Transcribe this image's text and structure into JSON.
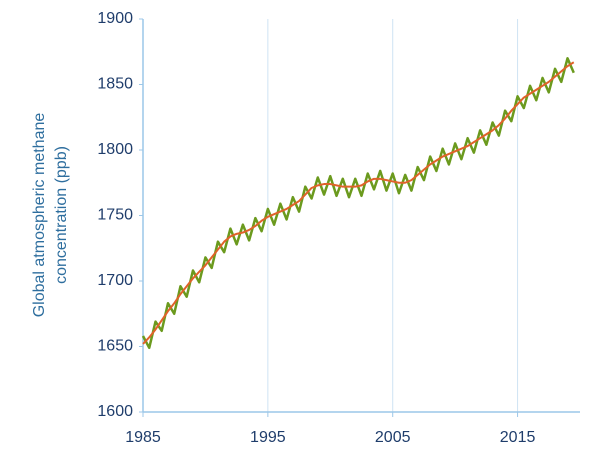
{
  "chart_data": {
    "type": "line",
    "ylabel": [
      "Global atmospheric methane",
      "concentration (ppb)"
    ],
    "x": [
      1985,
      1985.5,
      1986,
      1986.5,
      1987,
      1987.5,
      1988,
      1988.5,
      1989,
      1989.5,
      1990,
      1990.5,
      1991,
      1991.5,
      1992,
      1992.5,
      1993,
      1993.5,
      1994,
      1994.5,
      1995,
      1995.5,
      1996,
      1996.5,
      1997,
      1997.5,
      1998,
      1998.5,
      1999,
      1999.5,
      2000,
      2000.5,
      2001,
      2001.5,
      2002,
      2002.5,
      2003,
      2003.5,
      2004,
      2004.5,
      2005,
      2005.5,
      2006,
      2006.5,
      2007,
      2007.5,
      2008,
      2008.5,
      2009,
      2009.5,
      2010,
      2010.5,
      2011,
      2011.5,
      2012,
      2012.5,
      2013,
      2013.5,
      2014,
      2014.5,
      2015,
      2015.5,
      2016,
      2016.5,
      2017,
      2017.5,
      2018,
      2018.5,
      2019,
      2019.5
    ],
    "series": [
      {
        "color": "#6b9a1e",
        "width": 2.5,
        "values": [
          1658,
          1649,
          1669,
          1662,
          1683,
          1675,
          1696,
          1688,
          1708,
          1699,
          1718,
          1710,
          1730,
          1722,
          1740,
          1728,
          1743,
          1731,
          1748,
          1738,
          1755,
          1743,
          1759,
          1747,
          1764,
          1753,
          1772,
          1763,
          1779,
          1766,
          1780,
          1765,
          1778,
          1764,
          1778,
          1765,
          1782,
          1770,
          1784,
          1769,
          1782,
          1767,
          1781,
          1769,
          1787,
          1777,
          1795,
          1784,
          1801,
          1789,
          1805,
          1793,
          1809,
          1798,
          1815,
          1804,
          1821,
          1811,
          1830,
          1822,
          1841,
          1832,
          1849,
          1838,
          1855,
          1844,
          1862,
          1852,
          1870,
          1859
        ]
      },
      {
        "color": "#e0622a",
        "width": 2,
        "values": [
          1652,
          1657,
          1663,
          1670,
          1677,
          1683,
          1690,
          1696,
          1702,
          1707,
          1712,
          1718,
          1724,
          1730,
          1734,
          1736,
          1737,
          1739,
          1742,
          1746,
          1749,
          1751,
          1753,
          1755,
          1758,
          1761,
          1766,
          1771,
          1773,
          1774,
          1774,
          1773,
          1772,
          1772,
          1772,
          1773,
          1776,
          1778,
          1778,
          1777,
          1776,
          1775,
          1775,
          1777,
          1781,
          1785,
          1789,
          1792,
          1795,
          1797,
          1799,
          1801,
          1803,
          1806,
          1809,
          1812,
          1815,
          1819,
          1824,
          1830,
          1835,
          1840,
          1843,
          1846,
          1849,
          1852,
          1856,
          1860,
          1864,
          1867
        ]
      }
    ],
    "xlim": [
      1985,
      2020
    ],
    "xticks": [
      1985,
      1995,
      2005,
      2015
    ],
    "ylim": [
      1600,
      1900
    ],
    "yticks": [
      1600,
      1650,
      1700,
      1750,
      1800,
      1850,
      1900
    ],
    "grid": "x"
  }
}
